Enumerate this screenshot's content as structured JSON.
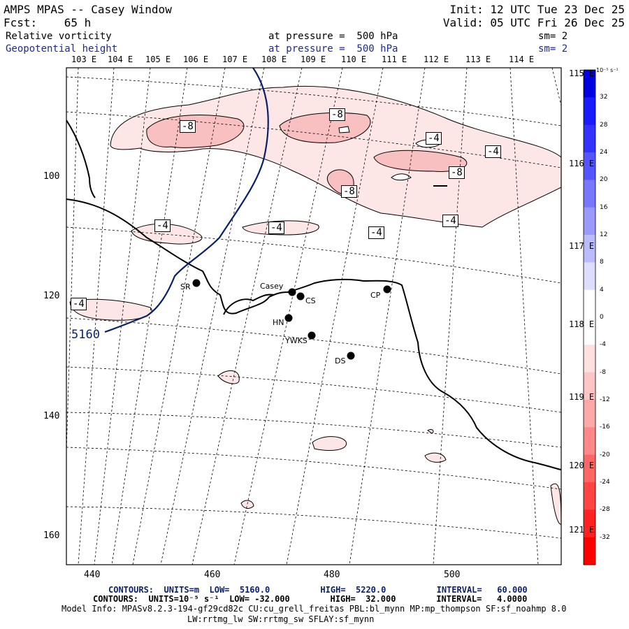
{
  "header": {
    "title": "AMPS MPAS -- Casey Window",
    "forecast": "Fcst:    65 h",
    "init": "Init: 12 UTC Tue 23 Dec 25",
    "valid": "Valid: 05 UTC Fri 26 Dec 25",
    "field1": {
      "name": "Relative vorticity",
      "level": "at pressure =  500 hPa",
      "smooth": "sm= 2"
    },
    "field2": {
      "name": "Geopotential height",
      "level": "at pressure =  500 hPa",
      "smooth": "sm= 2"
    }
  },
  "map": {
    "top_longitudes": [
      "103 E",
      "104 E",
      "105 E",
      "106 E",
      "107 E",
      "108 E",
      "109 E",
      "110 E",
      "111 E",
      "112 E",
      "113 E",
      "114 E"
    ],
    "right_longitudes": [
      "115 E",
      "116 E",
      "117 E",
      "118 E",
      "119 E",
      "120 E",
      "121 E"
    ],
    "y_axis": [
      "100",
      "120",
      "140",
      "160"
    ],
    "x_axis": [
      "440",
      "460",
      "480",
      "500"
    ],
    "height_contour_label": "5160",
    "vorticity_labels": [
      "-8",
      "-8",
      "-4",
      "-4",
      "-8",
      "-4",
      "-4",
      "-4",
      "-8",
      "-4",
      "-4"
    ],
    "stations": [
      {
        "id": "SR"
      },
      {
        "id": "Casey"
      },
      {
        "id": "CS"
      },
      {
        "id": "CP"
      },
      {
        "id": "HN"
      },
      {
        "id": "YWKS"
      },
      {
        "id": "DS"
      }
    ]
  },
  "colorbar": {
    "units": "10⁻⁵ s⁻¹",
    "levels": [
      "32",
      "28",
      "24",
      "20",
      "16",
      "12",
      "8",
      "4",
      "0",
      "-4",
      "-8",
      "-12",
      "-16",
      "-20",
      "-24",
      "-28",
      "-32"
    ],
    "colors": [
      "#0000e0",
      "#1a1aff",
      "#3333ff",
      "#5555ff",
      "#7777ff",
      "#9999ff",
      "#bbbbff",
      "#ddddff",
      "#ffffff",
      "#ffffff",
      "#ffe0e0",
      "#ffc4c4",
      "#ffa8a8",
      "#ff8888",
      "#ff6666",
      "#ff4444",
      "#ff2222",
      "#ff0000"
    ]
  },
  "footer": {
    "line1": "CONTOURS:  UNITS=m  LOW=  5160.0          HIGH=  5220.0          INTERVAL=   60.000",
    "line2": "CONTOURS:  UNITS=10⁻⁵ s⁻¹  LOW= -32.000        HIGH=  32.000        INTERVAL=   4.0000",
    "line3": "Model Info: MPASv8.2.3-194-gf29cd82c CU:cu_grell_freitas PBL:bl_mynn MP:mp_thompson SF:sf_noahmp 8.0",
    "line4": "LW:rrtmg_lw SW:rrtmg_sw SFLAY:sf_mynn"
  }
}
